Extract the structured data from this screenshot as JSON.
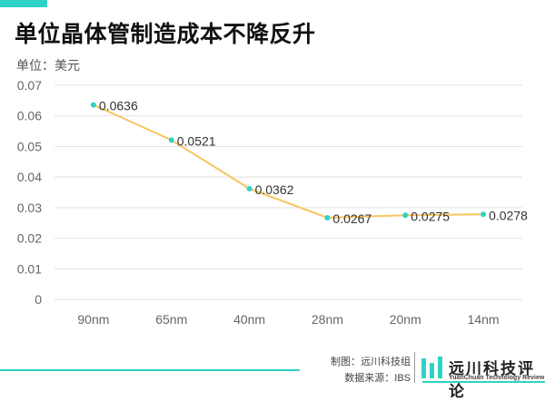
{
  "colors": {
    "accent": "#2ed3c6",
    "line": "#f7c65f",
    "grid": "#e2e2e2",
    "axis_text": "#666666"
  },
  "header": {
    "title": "单位晶体管制造成本不降反升",
    "unit": "单位：美元"
  },
  "footer": {
    "credit_chart": "制图：远川科技组",
    "credit_source": "数据来源：IBS",
    "logo_text": "远川科技评论",
    "logo_sub": "YuanChuan Technology Review",
    "logo_icon": "yuanchuan-logo-icon"
  },
  "chart_data": {
    "type": "line",
    "title": "单位晶体管制造成本不降反升",
    "xlabel": "",
    "ylabel": "单位：美元",
    "categories": [
      "90nm",
      "65nm",
      "40nm",
      "28nm",
      "20nm",
      "14nm"
    ],
    "series": [
      {
        "values": [
          0.0636,
          0.0521,
          0.0362,
          0.0267,
          0.0275,
          0.0278
        ],
        "labels": [
          "0.0636",
          "0.0521",
          "0.0362",
          "0.0267",
          "0.0275",
          "0.0278"
        ]
      }
    ],
    "ylim": [
      0,
      0.07
    ],
    "yticks": [
      0,
      0.01,
      0.02,
      0.03,
      0.04,
      0.05,
      0.06,
      0.07
    ],
    "ytick_labels": [
      "0",
      "0.01",
      "0.02",
      "0.03",
      "0.04",
      "0.05",
      "0.06",
      "0.07"
    ],
    "grid": true,
    "legend": "none"
  }
}
